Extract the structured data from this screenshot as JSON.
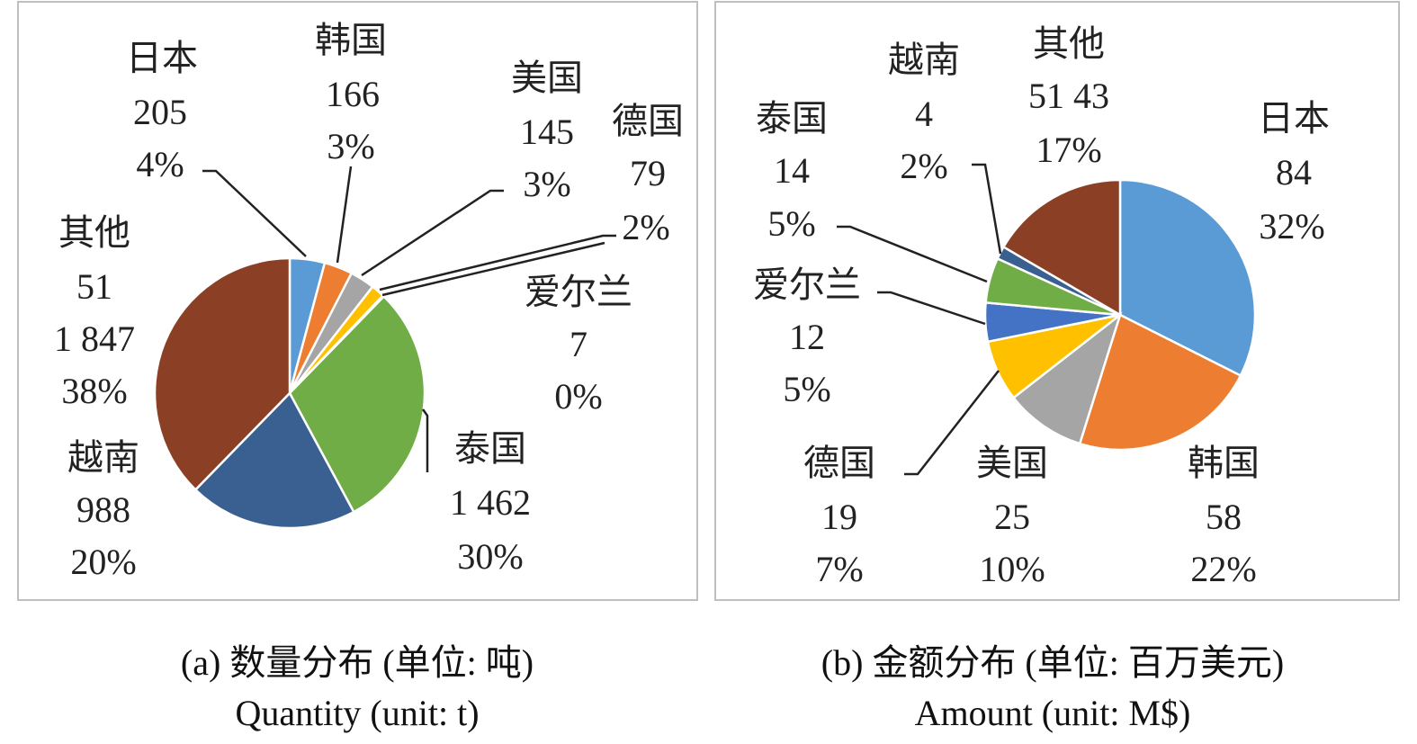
{
  "chart_data": [
    {
      "type": "pie",
      "caption_cn": "(a) 数量分布 (单位: 吨)",
      "caption_en": "Quantity (unit: t)",
      "slices": [
        {
          "name": "日本",
          "value": "205",
          "percent": "4%",
          "numeric": 205,
          "color": "#5b9bd5"
        },
        {
          "name": "韩国",
          "value": "166",
          "percent": "3%",
          "numeric": 166,
          "color": "#ed7d31"
        },
        {
          "name": "美国",
          "value": "145",
          "percent": "3%",
          "numeric": 145,
          "color": "#a5a5a5"
        },
        {
          "name": "德国",
          "value": "79",
          "percent": "2%",
          "numeric": 79,
          "color": "#ffc000"
        },
        {
          "name": "爱尔兰",
          "value": "7",
          "percent": "0%",
          "numeric": 7,
          "color": "#4472c4"
        },
        {
          "name": "泰国",
          "value": "1 462",
          "percent": "30%",
          "numeric": 1462,
          "color": "#70ad47"
        },
        {
          "name": "越南",
          "value": "988",
          "percent": "20%",
          "numeric": 988,
          "color": "#3a5f91"
        },
        {
          "name": "其他",
          "value": "1 847",
          "value_prefix": "51",
          "percent": "38%",
          "numeric": 1847,
          "color": "#8b4026"
        }
      ]
    },
    {
      "type": "pie",
      "caption_cn": "(b) 金额分布 (单位: 百万美元)",
      "caption_en": "Amount (unit: M$)",
      "slices": [
        {
          "name": "日本",
          "value": "84",
          "percent": "32%",
          "numeric": 84,
          "color": "#5b9bd5"
        },
        {
          "name": "韩国",
          "value": "58",
          "percent": "22%",
          "numeric": 58,
          "color": "#ed7d31"
        },
        {
          "name": "美国",
          "value": "25",
          "percent": "10%",
          "numeric": 25,
          "color": "#a5a5a5"
        },
        {
          "name": "德国",
          "value": "19",
          "percent": "7%",
          "numeric": 19,
          "color": "#ffc000"
        },
        {
          "name": "爱尔兰",
          "value": "12",
          "percent": "5%",
          "numeric": 12,
          "color": "#4472c4"
        },
        {
          "name": "泰国",
          "value": "14",
          "percent": "5%",
          "numeric": 14,
          "color": "#70ad47"
        },
        {
          "name": "越南",
          "value": "4",
          "percent": "2%",
          "numeric": 4,
          "color": "#3a5f91"
        },
        {
          "name": "其他",
          "value": "51 43",
          "percent": "17%",
          "numeric": 43,
          "color": "#8b4026"
        }
      ]
    }
  ]
}
